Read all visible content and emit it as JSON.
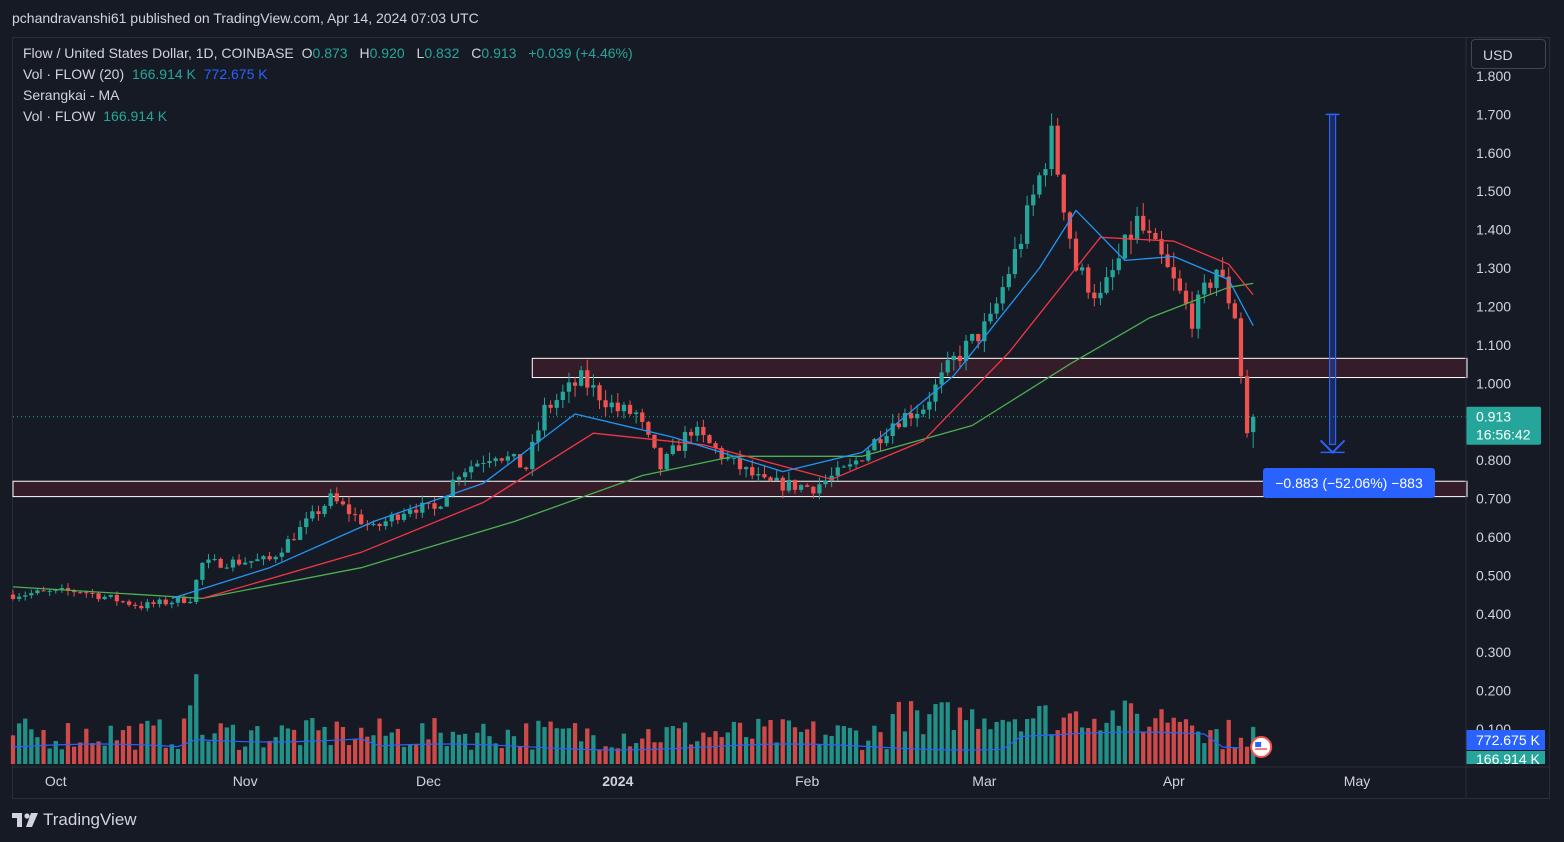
{
  "header": {
    "published": "pchandravanshi61 published on TradingView.com, Apr 14, 2024 07:03 UTC"
  },
  "legend": {
    "symbol": "Flow / United States Dollar, 1D, COINBASE",
    "o_label": "O",
    "o": "0.873",
    "h_label": "H",
    "h": "0.920",
    "l_label": "L",
    "l": "0.832",
    "c_label": "C",
    "c": "0.913",
    "change": "+0.039 (+4.46%)",
    "vol_label": "Vol · FLOW (20)",
    "vol_value": "166.914 K",
    "vol_ma": "772.675 K",
    "ma_label": "Serangkai - MA",
    "vol2_label": "Vol · FLOW",
    "vol2_value": "166.914 K"
  },
  "currency_button": "USD",
  "price_tag": {
    "price": "0.913",
    "countdown": "16:56:42"
  },
  "volume_tags": {
    "ma": "772.675 K",
    "vol": "166.914 K"
  },
  "measure_label": "−0.883 (−52.06%) −883",
  "footer": {
    "brand": "TradingView"
  },
  "colors": {
    "up": "#26a69a",
    "down": "#ef5350",
    "ma_blue": "#2962ff",
    "ma_fast": "#2196f3",
    "ma_red": "#f23645",
    "ma_green": "#4caf50",
    "zone_fill": "#3a1d2a",
    "measure": "#2962ff",
    "background": "#161a25"
  },
  "chart_data": {
    "type": "candlestick",
    "title": "Flow / United States Dollar, 1D, COINBASE",
    "ylim": [
      0.1,
      1.8
    ],
    "y_ticks": [
      "1.800",
      "1.700",
      "1.600",
      "1.500",
      "1.400",
      "1.300",
      "1.200",
      "1.100",
      "1.000",
      "0.900",
      "0.800",
      "0.700",
      "0.600",
      "0.500",
      "0.400",
      "0.300",
      "0.200",
      "0.100"
    ],
    "x_ticks": [
      {
        "label": "Oct",
        "date": "2023-10-01"
      },
      {
        "label": "Nov",
        "date": "2023-11-01"
      },
      {
        "label": "Dec",
        "date": "2023-12-01"
      },
      {
        "label": "2024",
        "date": "2024-01-01"
      },
      {
        "label": "Feb",
        "date": "2024-02-01"
      },
      {
        "label": "Mar",
        "date": "2024-03-01"
      },
      {
        "label": "Apr",
        "date": "2024-04-01"
      },
      {
        "label": "May",
        "date": "2024-05-01"
      }
    ],
    "x_range": [
      "2023-09-24",
      "2024-05-19"
    ],
    "last_date": "2024-04-14",
    "close_path": [
      {
        "date": "2023-09-24",
        "close": 0.45
      },
      {
        "date": "2023-10-05",
        "close": 0.46
      },
      {
        "date": "2023-10-15",
        "close": 0.42
      },
      {
        "date": "2023-10-23",
        "close": 0.44
      },
      {
        "date": "2023-10-25",
        "close": 0.53
      },
      {
        "date": "2023-11-05",
        "close": 0.54
      },
      {
        "date": "2023-11-15",
        "close": 0.7
      },
      {
        "date": "2023-11-22",
        "close": 0.62
      },
      {
        "date": "2023-11-28",
        "close": 0.68
      },
      {
        "date": "2023-12-02",
        "close": 0.67
      },
      {
        "date": "2023-12-06",
        "close": 0.77
      },
      {
        "date": "2023-12-12",
        "close": 0.82
      },
      {
        "date": "2023-12-17",
        "close": 0.78
      },
      {
        "date": "2023-12-20",
        "close": 0.93
      },
      {
        "date": "2023-12-26",
        "close": 1.01
      },
      {
        "date": "2024-01-01",
        "close": 0.93
      },
      {
        "date": "2024-01-04",
        "close": 0.92
      },
      {
        "date": "2024-01-08",
        "close": 0.78
      },
      {
        "date": "2024-01-13",
        "close": 0.88
      },
      {
        "date": "2024-01-19",
        "close": 0.8
      },
      {
        "date": "2024-01-25",
        "close": 0.74
      },
      {
        "date": "2024-02-02",
        "close": 0.73
      },
      {
        "date": "2024-02-08",
        "close": 0.78
      },
      {
        "date": "2024-02-15",
        "close": 0.9
      },
      {
        "date": "2024-02-20",
        "close": 0.94
      },
      {
        "date": "2024-02-25",
        "close": 1.06
      },
      {
        "date": "2024-03-02",
        "close": 1.16
      },
      {
        "date": "2024-03-07",
        "close": 1.38
      },
      {
        "date": "2024-03-12",
        "close": 1.64
      },
      {
        "date": "2024-03-16",
        "close": 1.3
      },
      {
        "date": "2024-03-20",
        "close": 1.22
      },
      {
        "date": "2024-03-26",
        "close": 1.42
      },
      {
        "date": "2024-03-30",
        "close": 1.32
      },
      {
        "date": "2024-04-04",
        "close": 1.17
      },
      {
        "date": "2024-04-08",
        "close": 1.3
      },
      {
        "date": "2024-04-11",
        "close": 1.18
      },
      {
        "date": "2024-04-13",
        "close": 0.87
      },
      {
        "date": "2024-04-14",
        "close": 0.913
      }
    ],
    "ma_blue": [
      {
        "date": "2023-10-20",
        "value": 0.44
      },
      {
        "date": "2023-11-05",
        "value": 0.52
      },
      {
        "date": "2023-11-22",
        "value": 0.64
      },
      {
        "date": "2023-12-10",
        "value": 0.74
      },
      {
        "date": "2023-12-25",
        "value": 0.92
      },
      {
        "date": "2024-01-10",
        "value": 0.86
      },
      {
        "date": "2024-01-28",
        "value": 0.77
      },
      {
        "date": "2024-02-10",
        "value": 0.82
      },
      {
        "date": "2024-02-25",
        "value": 1.02
      },
      {
        "date": "2024-03-10",
        "value": 1.3
      },
      {
        "date": "2024-03-16",
        "value": 1.45
      },
      {
        "date": "2024-03-24",
        "value": 1.32
      },
      {
        "date": "2024-04-01",
        "value": 1.33
      },
      {
        "date": "2024-04-10",
        "value": 1.27
      },
      {
        "date": "2024-04-14",
        "value": 1.15
      }
    ],
    "ma_red": [
      {
        "date": "2023-10-25",
        "value": 0.44
      },
      {
        "date": "2023-11-20",
        "value": 0.56
      },
      {
        "date": "2023-12-10",
        "value": 0.69
      },
      {
        "date": "2023-12-28",
        "value": 0.87
      },
      {
        "date": "2024-01-15",
        "value": 0.84
      },
      {
        "date": "2024-02-05",
        "value": 0.75
      },
      {
        "date": "2024-02-20",
        "value": 0.85
      },
      {
        "date": "2024-03-05",
        "value": 1.08
      },
      {
        "date": "2024-03-20",
        "value": 1.38
      },
      {
        "date": "2024-04-01",
        "value": 1.37
      },
      {
        "date": "2024-04-10",
        "value": 1.31
      },
      {
        "date": "2024-04-14",
        "value": 1.23
      }
    ],
    "ma_green": [
      {
        "date": "2023-09-24",
        "value": 0.47
      },
      {
        "date": "2023-10-25",
        "value": 0.44
      },
      {
        "date": "2023-11-20",
        "value": 0.52
      },
      {
        "date": "2023-12-15",
        "value": 0.64
      },
      {
        "date": "2024-01-05",
        "value": 0.76
      },
      {
        "date": "2024-01-20",
        "value": 0.81
      },
      {
        "date": "2024-02-10",
        "value": 0.81
      },
      {
        "date": "2024-02-28",
        "value": 0.89
      },
      {
        "date": "2024-03-15",
        "value": 1.05
      },
      {
        "date": "2024-03-28",
        "value": 1.17
      },
      {
        "date": "2024-04-10",
        "value": 1.25
      },
      {
        "date": "2024-04-14",
        "value": 1.26
      }
    ],
    "zones": [
      {
        "low": 1.015,
        "high": 1.065,
        "from": "2023-12-18",
        "to": "2024-05-19"
      },
      {
        "low": 0.705,
        "high": 0.745,
        "from": "2023-09-24",
        "to": "2024-05-19"
      }
    ],
    "measure": {
      "from": 1.7,
      "to": 0.82,
      "date": "2024-04-27"
    },
    "volume_spikes": [
      {
        "date": "2023-10-23",
        "value": 3.8
      },
      {
        "date": "2023-10-24",
        "value": 6.4
      },
      {
        "date": "2023-11-17",
        "value": 2.0
      },
      {
        "date": "2023-12-05",
        "value": 1.6
      },
      {
        "date": "2023-12-22",
        "value": 1.9
      },
      {
        "date": "2024-02-20",
        "value": 1.4
      },
      {
        "date": "2024-03-12",
        "value": 1.4
      },
      {
        "date": "2024-03-27",
        "value": 1.6
      },
      {
        "date": "2024-04-12",
        "value": 1.1
      }
    ]
  }
}
